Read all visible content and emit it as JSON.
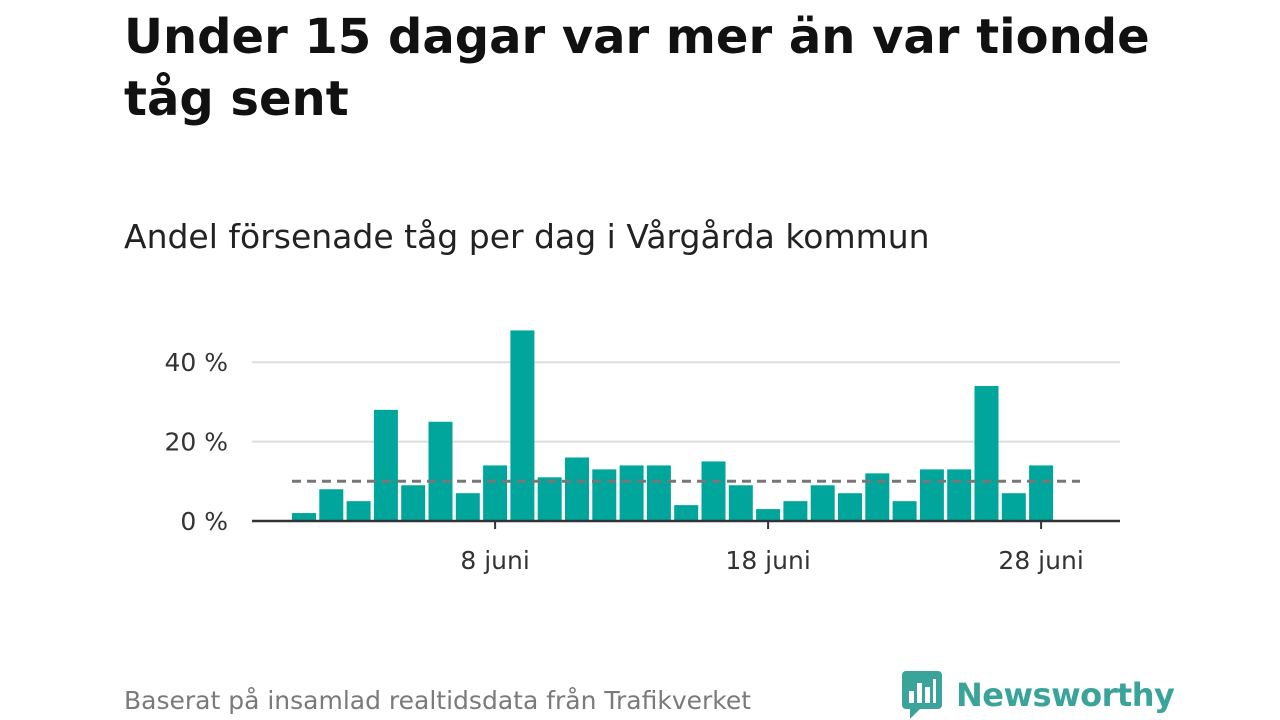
{
  "headline": "Under 15 dagar var mer än var tionde tåg sent",
  "footer": {
    "source": "Baserat på insamlad realtidsdata från Trafikverket",
    "brand_name": "Newsworthy",
    "brand_icon": "bar-chart-speech-bubble-icon"
  },
  "colors": {
    "bar": "#00a69c",
    "reference_line": "#777777",
    "grid": "#dddddd",
    "axis": "#333333",
    "brand": "#3aa39a"
  },
  "chart_data": {
    "type": "bar",
    "title": "Andel försenade tåg per dag i Vårgårda kommun",
    "xlabel": "",
    "ylabel": "",
    "unit": "%",
    "x": [
      "2024-06-01",
      "2024-06-02",
      "2024-06-03",
      "2024-06-04",
      "2024-06-05",
      "2024-06-06",
      "2024-06-07",
      "2024-06-08",
      "2024-06-09",
      "2024-06-10",
      "2024-06-11",
      "2024-06-12",
      "2024-06-13",
      "2024-06-14",
      "2024-06-15",
      "2024-06-16",
      "2024-06-17",
      "2024-06-18",
      "2024-06-19",
      "2024-06-20",
      "2024-06-21",
      "2024-06-22",
      "2024-06-23",
      "2024-06-24",
      "2024-06-25",
      "2024-06-26",
      "2024-06-27",
      "2024-06-28"
    ],
    "values": [
      2,
      8,
      5,
      28,
      9,
      25,
      7,
      14,
      48,
      11,
      16,
      13,
      14,
      14,
      4,
      15,
      9,
      3,
      5,
      9,
      7,
      12,
      5,
      13,
      13,
      34,
      7,
      14
    ],
    "reference_line": 10,
    "ylim": [
      0,
      50
    ],
    "y_ticks": [
      0,
      20,
      40
    ],
    "y_tick_labels": [
      "0 %",
      "20 %",
      "40 %"
    ],
    "x_ticks": [
      "2024-06-08",
      "2024-06-18",
      "2024-06-28"
    ],
    "x_tick_labels": [
      "8 juni",
      "18 juni",
      "28 juni"
    ],
    "grid": true,
    "legend": "none"
  }
}
